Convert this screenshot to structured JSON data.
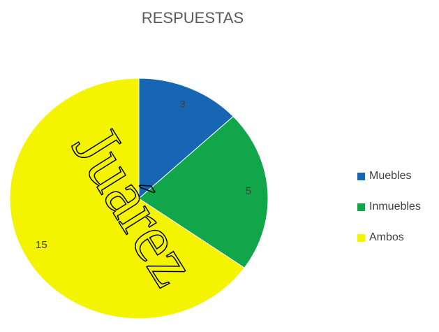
{
  "chart_data": {
    "type": "pie",
    "title": "RESPUESTAS",
    "categories": [
      "Muebles",
      "Inmuebles",
      "Ambos"
    ],
    "values": [
      3,
      5,
      15
    ],
    "colors": [
      "#1766b4",
      "#12a64a",
      "#f4f400"
    ],
    "legend": "right"
  },
  "watermark": "Juárez"
}
